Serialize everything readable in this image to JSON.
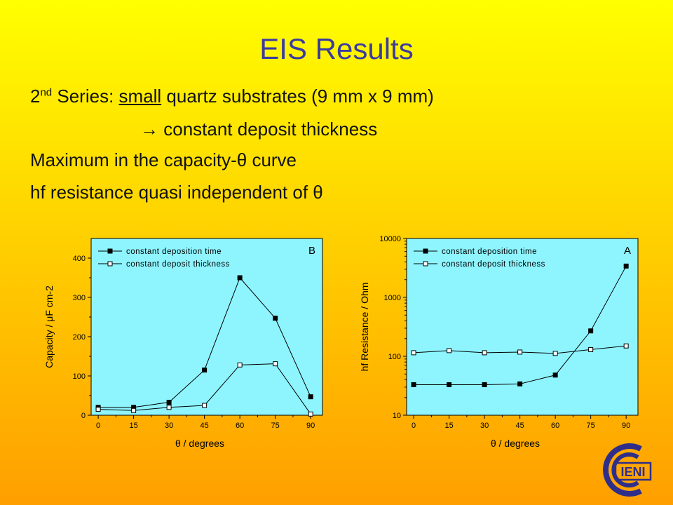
{
  "slide": {
    "title": "EIS Results",
    "line1_prefix": "2",
    "line1_sup": "nd",
    "line1_part1": " Series: ",
    "line1_underlined": "small",
    "line1_part2": " quartz substrates (9 mm x 9 mm)",
    "line2_arrow": "→",
    "line2_text": "constant deposit thickness",
    "line3": "Maximum in the capacity-θ curve",
    "line4": "hf resistance quasi independent of θ"
  },
  "logo": {
    "text": "IENI"
  },
  "colors": {
    "plot_bg": "#8ef5ff",
    "series": "#000000"
  },
  "chart_data": [
    {
      "type": "line",
      "panel_label": "B",
      "xlabel": "θ / degrees",
      "ylabel": "Capacity / μF cm-2",
      "x": [
        0,
        15,
        30,
        45,
        60,
        75,
        90
      ],
      "xlim": [
        -3,
        95
      ],
      "ylim": [
        0,
        450
      ],
      "xticks": [
        0,
        15,
        30,
        45,
        60,
        75,
        90
      ],
      "yticks": [
        0,
        100,
        200,
        300,
        400
      ],
      "legend_position": "top-left",
      "series": [
        {
          "name": "constant deposition time",
          "marker": "filled-square",
          "values": [
            20,
            20,
            33,
            115,
            350,
            247,
            47
          ]
        },
        {
          "name": "constant deposit thickness",
          "marker": "open-square",
          "values": [
            15,
            12,
            20,
            25,
            128,
            131,
            3
          ]
        }
      ]
    },
    {
      "type": "line",
      "panel_label": "A",
      "xlabel": "θ / degrees",
      "ylabel": "hf Resistance / Ohm",
      "yscale": "log",
      "x": [
        0,
        15,
        30,
        45,
        60,
        75,
        90
      ],
      "xlim": [
        -3,
        95
      ],
      "ylim": [
        10,
        10000
      ],
      "xticks": [
        0,
        15,
        30,
        45,
        60,
        75,
        90
      ],
      "yticks": [
        10,
        100,
        1000,
        10000
      ],
      "legend_position": "top-left",
      "series": [
        {
          "name": "constant deposition time",
          "marker": "filled-square",
          "values": [
            33,
            33,
            33,
            34,
            48,
            270,
            3400
          ]
        },
        {
          "name": "constant deposit thickness",
          "marker": "open-square",
          "values": [
            115,
            125,
            115,
            118,
            112,
            130,
            150
          ]
        }
      ]
    }
  ]
}
